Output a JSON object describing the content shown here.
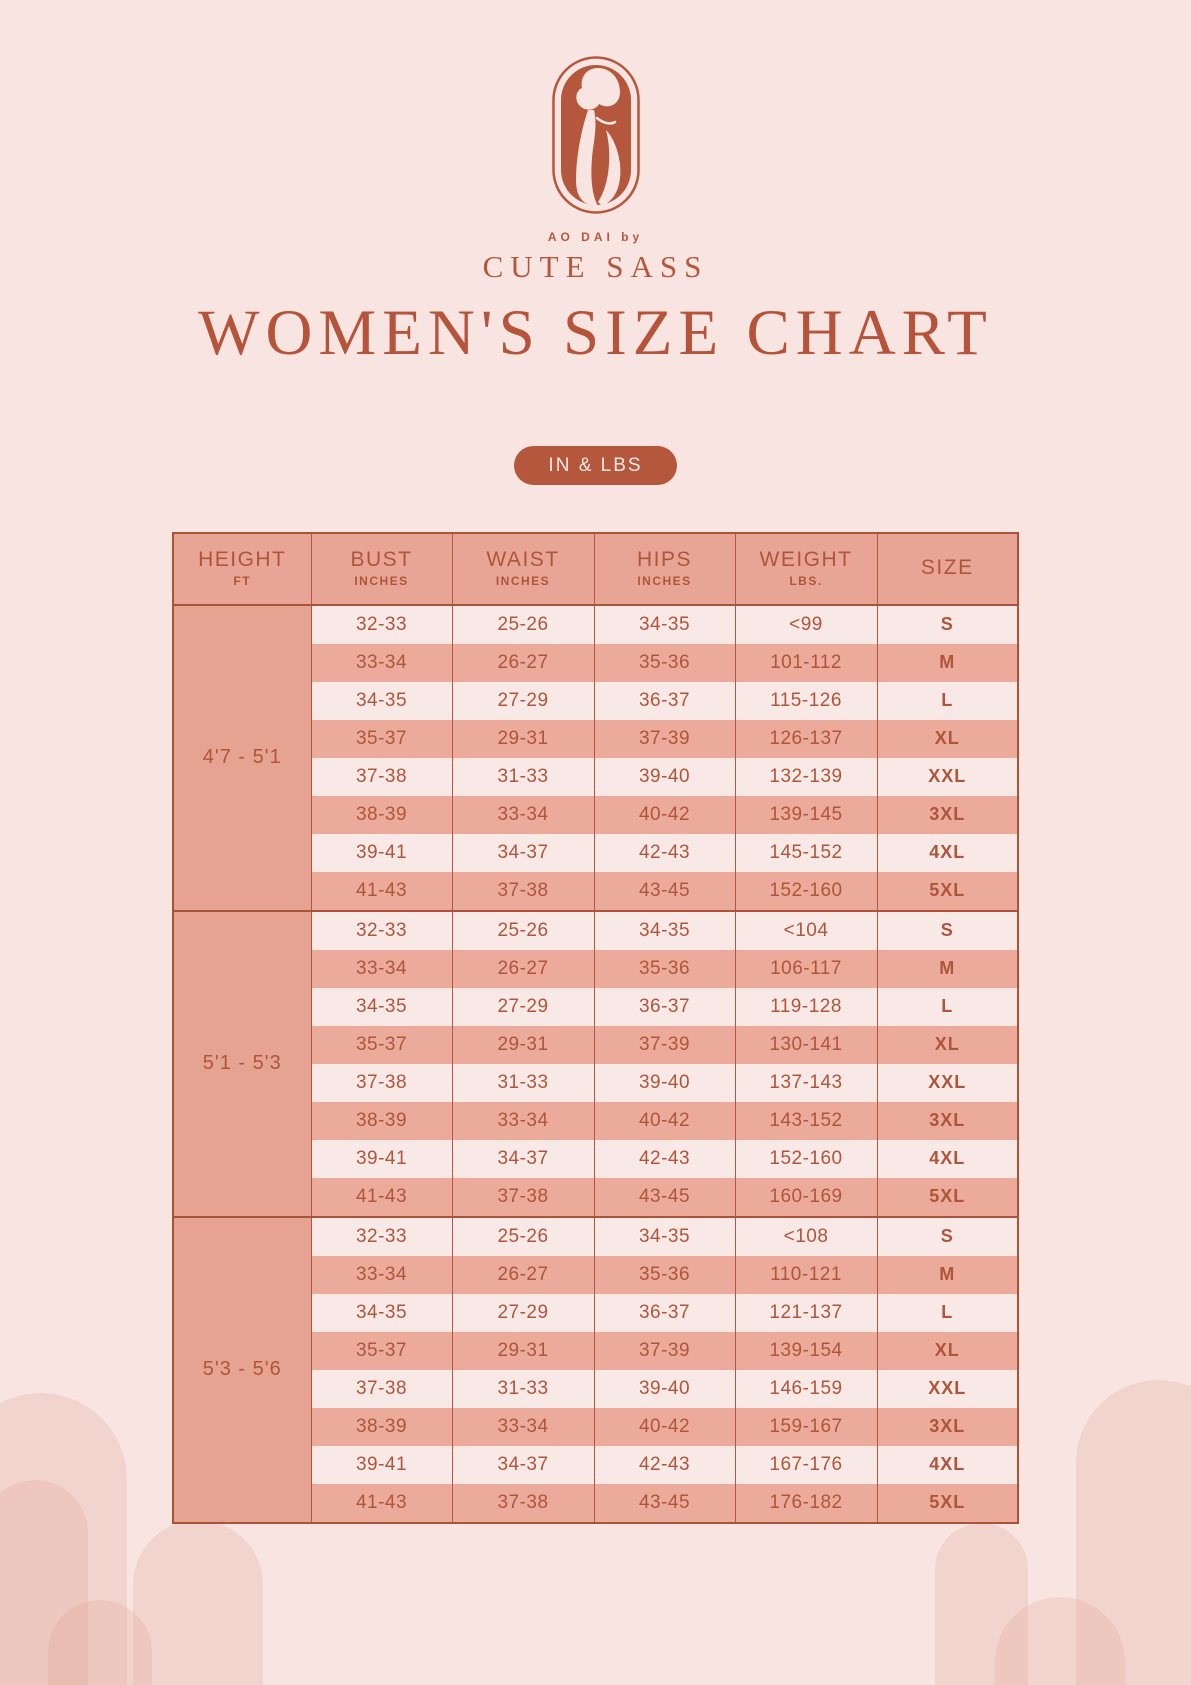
{
  "brand": {
    "tagline": "AO DAI by",
    "name": "CUTE SASS"
  },
  "page_title": "WOMEN'S SIZE CHART",
  "unit_badge": "IN & LBS",
  "colors": {
    "accent_terracotta": "#b5573c",
    "page_background": "#f8e5e2",
    "header_fill": "#e8a595",
    "height_column_fill": "#e7a392",
    "row_light": "#f9e9e6",
    "row_dark": "#ebaa9a",
    "table_border": "#a9543a"
  },
  "chart_data": {
    "type": "table",
    "title": "WOMEN'S SIZE CHART",
    "units_note": "IN & LBS",
    "columns": [
      {
        "label": "HEIGHT",
        "sub": "FT"
      },
      {
        "label": "BUST",
        "sub": "INCHES"
      },
      {
        "label": "WAIST",
        "sub": "INCHES"
      },
      {
        "label": "HIPS",
        "sub": "INCHES"
      },
      {
        "label": "WEIGHT",
        "sub": "LBS."
      },
      {
        "label": "SIZE",
        "sub": ""
      }
    ],
    "groups": [
      {
        "height": "4'7 - 5'1",
        "rows": [
          [
            "32-33",
            "25-26",
            "34-35",
            "<99",
            "S"
          ],
          [
            "33-34",
            "26-27",
            "35-36",
            "101-112",
            "M"
          ],
          [
            "34-35",
            "27-29",
            "36-37",
            "115-126",
            "L"
          ],
          [
            "35-37",
            "29-31",
            "37-39",
            "126-137",
            "XL"
          ],
          [
            "37-38",
            "31-33",
            "39-40",
            "132-139",
            "XXL"
          ],
          [
            "38-39",
            "33-34",
            "40-42",
            "139-145",
            "3XL"
          ],
          [
            "39-41",
            "34-37",
            "42-43",
            "145-152",
            "4XL"
          ],
          [
            "41-43",
            "37-38",
            "43-45",
            "152-160",
            "5XL"
          ]
        ]
      },
      {
        "height": "5'1 - 5'3",
        "rows": [
          [
            "32-33",
            "25-26",
            "34-35",
            "<104",
            "S"
          ],
          [
            "33-34",
            "26-27",
            "35-36",
            "106-117",
            "M"
          ],
          [
            "34-35",
            "27-29",
            "36-37",
            "119-128",
            "L"
          ],
          [
            "35-37",
            "29-31",
            "37-39",
            "130-141",
            "XL"
          ],
          [
            "37-38",
            "31-33",
            "39-40",
            "137-143",
            "XXL"
          ],
          [
            "38-39",
            "33-34",
            "40-42",
            "143-152",
            "3XL"
          ],
          [
            "39-41",
            "34-37",
            "42-43",
            "152-160",
            "4XL"
          ],
          [
            "41-43",
            "37-38",
            "43-45",
            "160-169",
            "5XL"
          ]
        ]
      },
      {
        "height": "5'3 - 5'6",
        "rows": [
          [
            "32-33",
            "25-26",
            "34-35",
            "<108",
            "S"
          ],
          [
            "33-34",
            "26-27",
            "35-36",
            "110-121",
            "M"
          ],
          [
            "34-35",
            "27-29",
            "36-37",
            "121-137",
            "L"
          ],
          [
            "35-37",
            "29-31",
            "37-39",
            "139-154",
            "XL"
          ],
          [
            "37-38",
            "31-33",
            "39-40",
            "146-159",
            "XXL"
          ],
          [
            "38-39",
            "33-34",
            "40-42",
            "159-167",
            "3XL"
          ],
          [
            "39-41",
            "34-37",
            "42-43",
            "167-176",
            "4XL"
          ],
          [
            "41-43",
            "37-38",
            "43-45",
            "176-182",
            "5XL"
          ]
        ]
      }
    ]
  }
}
